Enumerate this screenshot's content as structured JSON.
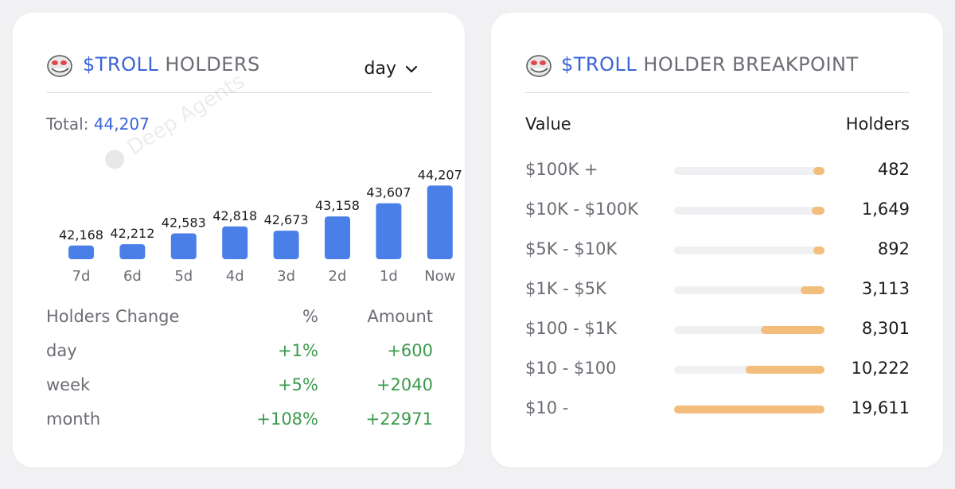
{
  "left": {
    "title_token": "$TROLL",
    "title_rest": " HOLDERS",
    "icon": "troll-face-icon",
    "dropdown_value": "day",
    "total_label": "Total: ",
    "total_value": "44,207",
    "watermark": "Deep Agents",
    "change_table": {
      "headers": [
        "Holders Change",
        "%",
        "Amount"
      ],
      "rows": [
        {
          "period": "day",
          "percent": "+1%",
          "amount": "+600"
        },
        {
          "period": "week",
          "percent": "+5%",
          "amount": "+2040"
        },
        {
          "period": "month",
          "percent": "+108%",
          "amount": "+22971"
        }
      ]
    }
  },
  "chart_data": {
    "type": "bar",
    "title": "$TROLL HOLDERS",
    "categories": [
      "7d",
      "6d",
      "5d",
      "4d",
      "3d",
      "2d",
      "1d",
      "Now"
    ],
    "values": [
      42168,
      42212,
      42583,
      42818,
      42673,
      43158,
      43607,
      44207
    ],
    "value_labels": [
      "42,168",
      "42,212",
      "42,583",
      "42,818",
      "42,673",
      "43,158",
      "43,607",
      "44,207"
    ],
    "ylim": [
      41810,
      44300
    ],
    "bar_color": "#4b7fe8"
  },
  "right": {
    "title_token": "$TROLL",
    "title_rest": " HOLDER BREAKPOINT",
    "icon": "troll-face-icon",
    "headers": [
      "Value",
      "Holders"
    ],
    "bar_color": "#f3be7c",
    "bar_max": 19611,
    "rows": [
      {
        "label": "$100K +",
        "holders": "482",
        "count": 482
      },
      {
        "label": "$10K - $100K",
        "holders": "1,649",
        "count": 1649
      },
      {
        "label": "$5K - $10K",
        "holders": "892",
        "count": 892
      },
      {
        "label": "$1K - $5K",
        "holders": "3,113",
        "count": 3113
      },
      {
        "label": "$100 - $1K",
        "holders": "8,301",
        "count": 8301
      },
      {
        "label": "$10 - $100",
        "holders": "10,222",
        "count": 10222
      },
      {
        "label": "$10 -",
        "holders": "19,611",
        "count": 19611
      }
    ]
  }
}
